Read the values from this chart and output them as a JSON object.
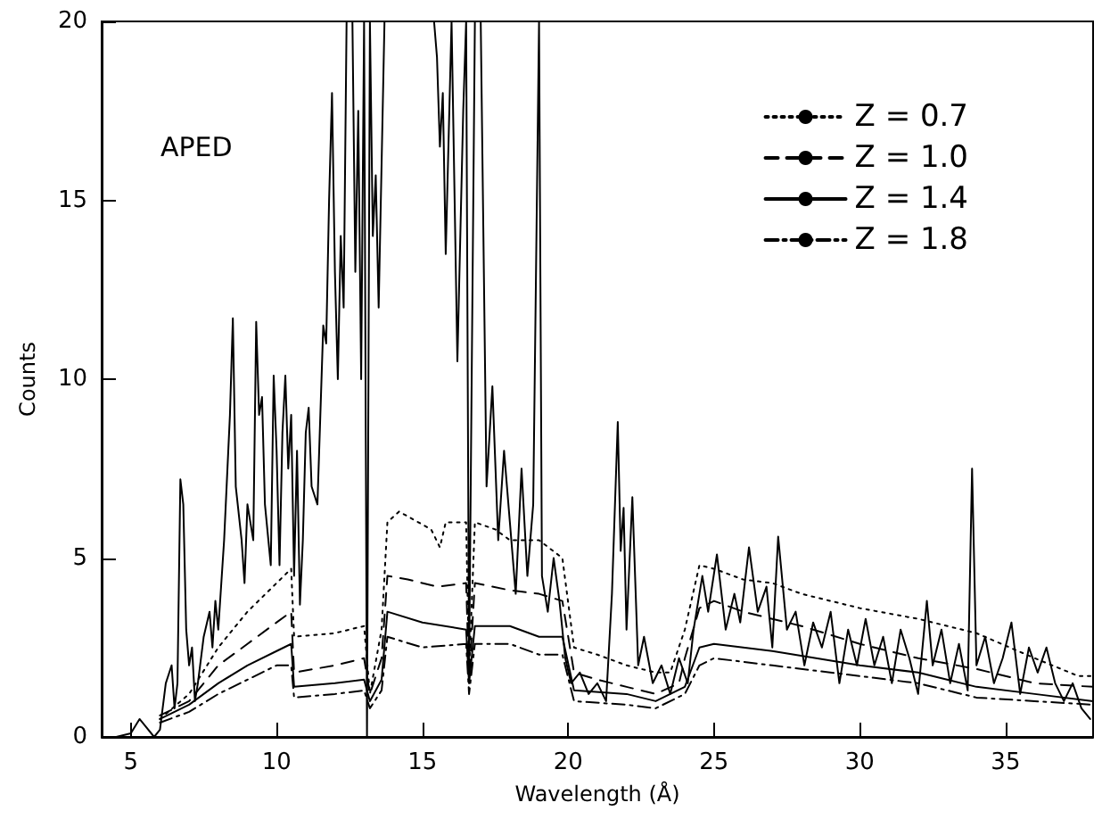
{
  "chart_data": {
    "type": "line",
    "xlabel": "Wavelength (Å)",
    "ylabel": "Counts",
    "annotations": [
      "APED"
    ],
    "xlim": [
      4,
      38
    ],
    "xticks": [
      5,
      10,
      15,
      20,
      25,
      30,
      35
    ],
    "ylim": [
      0,
      20
    ],
    "yticks": [
      0,
      5,
      10,
      15,
      20
    ],
    "grid": false,
    "legend": "top right",
    "marker": "none",
    "series": [
      {
        "color": "#000000",
        "line_style": "solid",
        "x": [
          4.5,
          5.0,
          5.3,
          5.5,
          5.8,
          6.0,
          6.2,
          6.4,
          6.5,
          6.6,
          6.7,
          6.8,
          6.9,
          7.0,
          7.1,
          7.2,
          7.3,
          7.5,
          7.7,
          7.8,
          7.9,
          8.0,
          8.2,
          8.4,
          8.5,
          8.6,
          8.8,
          8.9,
          9.0,
          9.2,
          9.3,
          9.4,
          9.5,
          9.6,
          9.8,
          9.9,
          10.0,
          10.1,
          10.2,
          10.3,
          10.4,
          10.5,
          10.6,
          10.7,
          10.8,
          10.9,
          11.0,
          11.1,
          11.2,
          11.4,
          11.6,
          11.7,
          11.8,
          11.9,
          12.0,
          12.1,
          12.2,
          12.3,
          12.4,
          12.6,
          12.7,
          12.8,
          12.9,
          13.0,
          13.1,
          13.2,
          13.3,
          13.4,
          13.5,
          13.7,
          14.0,
          14.5,
          15.0,
          15.4,
          15.5,
          15.6,
          15.7,
          15.8,
          16.0,
          16.2,
          16.4,
          16.5,
          16.6,
          16.8,
          17.0,
          17.2,
          17.4,
          17.6,
          17.8,
          18.0,
          18.2,
          18.4,
          18.6,
          18.8,
          19.0,
          19.1,
          19.3,
          19.5,
          19.7,
          19.9,
          20.1,
          20.4,
          20.7,
          21.0,
          21.3,
          21.5,
          21.7,
          21.8,
          21.9,
          22.0,
          22.2,
          22.4,
          22.6,
          22.9,
          23.2,
          23.5,
          23.8,
          24.1,
          24.3,
          24.6,
          24.8,
          25.1,
          25.4,
          25.7,
          25.9,
          26.2,
          26.5,
          26.8,
          27.0,
          27.2,
          27.5,
          27.8,
          28.1,
          28.4,
          28.7,
          29.0,
          29.3,
          29.6,
          29.9,
          30.2,
          30.5,
          30.8,
          31.1,
          31.4,
          31.7,
          32.0,
          32.3,
          32.5,
          32.8,
          33.1,
          33.4,
          33.7,
          33.85,
          34.0,
          34.3,
          34.6,
          34.9,
          35.2,
          35.5,
          35.8,
          36.1,
          36.4,
          36.7,
          37.0,
          37.3,
          37.6,
          37.9
        ],
        "values": [
          0,
          0.1,
          0.5,
          0.3,
          0,
          0.2,
          1.5,
          2.0,
          0.8,
          1.5,
          7.2,
          6.5,
          3.0,
          2.0,
          2.5,
          1.0,
          1.5,
          2.8,
          3.5,
          2.5,
          3.8,
          3.0,
          5.5,
          9.0,
          11.7,
          7.0,
          5.5,
          4.3,
          6.5,
          5.5,
          11.6,
          9.0,
          9.5,
          6.5,
          4.8,
          10.1,
          8.0,
          4.8,
          8.5,
          10.1,
          7.5,
          9.0,
          4.5,
          8.0,
          3.7,
          5.5,
          8.5,
          9.2,
          7.0,
          6.5,
          11.5,
          11.0,
          15.0,
          18.0,
          13.0,
          10.0,
          14.0,
          12.0,
          20,
          20,
          13.0,
          17.5,
          10.0,
          20,
          0,
          20,
          14.0,
          15.7,
          12.0,
          20,
          20,
          20,
          20,
          20,
          19.0,
          16.5,
          18.0,
          13.5,
          20,
          10.5,
          17.5,
          20,
          1.8,
          20,
          20,
          7.0,
          9.8,
          5.5,
          8.0,
          6.0,
          4.0,
          7.5,
          4.5,
          6.5,
          20,
          4.5,
          3.5,
          5.0,
          3.8,
          2.2,
          1.5,
          1.8,
          1.2,
          1.5,
          1.0,
          4.0,
          8.8,
          5.2,
          6.4,
          3.0,
          6.7,
          2.0,
          2.8,
          1.5,
          2.0,
          1.2,
          2.2,
          1.5,
          3.0,
          4.5,
          3.5,
          5.1,
          3.0,
          4.0,
          3.2,
          5.3,
          3.5,
          4.2,
          2.5,
          5.6,
          3.0,
          3.5,
          2.0,
          3.2,
          2.5,
          3.5,
          1.5,
          3.0,
          2.0,
          3.3,
          2.0,
          2.8,
          1.5,
          3.0,
          2.2,
          1.2,
          3.8,
          2.0,
          3.0,
          1.5,
          2.6,
          1.3,
          7.5,
          2.0,
          2.8,
          1.5,
          2.2,
          3.2,
          1.2,
          2.5,
          1.8,
          2.5,
          1.5,
          1.0,
          1.5,
          0.8,
          0.5
        ]
      },
      {
        "name": "Z = 0.7",
        "color": "#000000",
        "line_style": "dotted",
        "x": [
          6.0,
          7,
          8,
          9,
          10,
          10.5,
          10.6,
          12,
          13,
          13.2,
          13.6,
          13.8,
          14.2,
          15.3,
          15.6,
          15.8,
          16.5,
          16.6,
          16.8,
          17.5,
          18,
          19,
          19.8,
          20.2,
          21,
          22,
          23,
          23.5,
          24,
          24.5,
          25,
          26,
          27,
          28,
          30,
          32,
          34,
          36,
          37.5,
          38
        ],
        "values": [
          0.5,
          1.2,
          2.5,
          3.5,
          4.3,
          4.7,
          2.8,
          2.9,
          3.1,
          1.2,
          3.0,
          6.0,
          6.3,
          5.8,
          5.3,
          6.0,
          6.0,
          1.8,
          6.0,
          5.8,
          5.5,
          5.5,
          5.0,
          2.5,
          2.3,
          2.0,
          1.8,
          1.8,
          3.0,
          4.8,
          4.7,
          4.4,
          4.3,
          4.0,
          3.6,
          3.3,
          2.9,
          2.2,
          1.7,
          1.7
        ]
      },
      {
        "name": "Z = 1.0",
        "color": "#000000",
        "line_style": "dashed",
        "x": [
          6,
          7,
          8,
          9,
          10,
          10.5,
          10.6,
          12,
          13,
          13.2,
          13.6,
          13.8,
          14.5,
          15.5,
          16.5,
          16.6,
          16.8,
          18,
          19,
          19.8,
          20.2,
          21,
          22,
          23,
          23.8,
          24,
          24.5,
          25,
          26,
          28,
          30,
          32,
          34,
          36,
          38
        ],
        "values": [
          0.6,
          1.0,
          2.0,
          2.6,
          3.2,
          3.5,
          1.8,
          2.0,
          2.2,
          1.2,
          2.2,
          4.5,
          4.4,
          4.2,
          4.3,
          1.6,
          4.3,
          4.1,
          4.0,
          3.8,
          1.8,
          1.6,
          1.4,
          1.2,
          1.5,
          2.2,
          3.6,
          3.8,
          3.5,
          3.1,
          2.6,
          2.2,
          1.9,
          1.5,
          1.4
        ]
      },
      {
        "name": "Z = 1.4",
        "color": "#000000",
        "line_style": "solid",
        "x": [
          6,
          7,
          8,
          9,
          10,
          10.5,
          10.6,
          12,
          13,
          13.2,
          13.6,
          13.8,
          15,
          16.5,
          16.6,
          16.8,
          18,
          19,
          19.8,
          20.2,
          22,
          23,
          24,
          24.5,
          25,
          27,
          30,
          32,
          34,
          36,
          38
        ],
        "values": [
          0.5,
          0.9,
          1.5,
          2.0,
          2.4,
          2.6,
          1.4,
          1.5,
          1.6,
          1.0,
          1.6,
          3.5,
          3.2,
          3.0,
          1.5,
          3.1,
          3.1,
          2.8,
          2.8,
          1.3,
          1.2,
          1.0,
          1.4,
          2.5,
          2.6,
          2.4,
          2.0,
          1.8,
          1.4,
          1.2,
          1.0
        ]
      },
      {
        "name": "Z = 1.8",
        "color": "#000000",
        "line_style": "dashdot",
        "x": [
          6,
          7,
          8,
          9,
          10,
          10.5,
          10.6,
          12,
          13,
          13.2,
          13.6,
          13.8,
          15,
          16.5,
          16.6,
          16.8,
          18,
          19,
          19.8,
          20.2,
          22,
          23,
          24,
          24.5,
          25,
          27,
          30,
          32,
          34,
          36,
          38
        ],
        "values": [
          0.4,
          0.7,
          1.2,
          1.6,
          2.0,
          2.0,
          1.1,
          1.2,
          1.3,
          0.8,
          1.3,
          2.8,
          2.5,
          2.6,
          1.2,
          2.6,
          2.6,
          2.3,
          2.3,
          1.0,
          0.9,
          0.8,
          1.2,
          2.0,
          2.2,
          2.0,
          1.7,
          1.5,
          1.1,
          1.0,
          0.9
        ]
      }
    ]
  }
}
